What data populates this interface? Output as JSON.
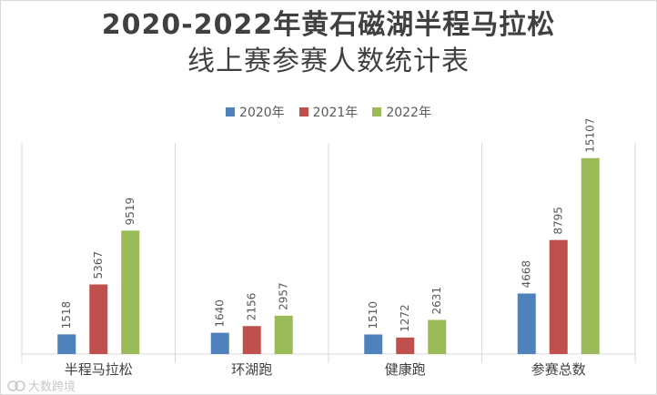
{
  "chart_data": {
    "type": "bar",
    "title_line1": "2020-2022年黄石磁湖半程马拉松",
    "title_line2": "线上赛参赛人数统计表",
    "categories": [
      "半程马拉松",
      "环湖跑",
      "健康跑",
      "参赛总数"
    ],
    "series": [
      {
        "name": "2020年",
        "color": "#4f81bd",
        "values": [
          1518,
          1640,
          1510,
          4668
        ]
      },
      {
        "name": "2021年",
        "color": "#c0504d",
        "values": [
          5367,
          2156,
          1272,
          8795
        ]
      },
      {
        "name": "2022年",
        "color": "#9bbb59",
        "values": [
          9519,
          2957,
          2631,
          15107
        ]
      }
    ],
    "ylim": [
      0,
      16000
    ],
    "legend_position": "top",
    "grid": false
  },
  "watermark": {
    "text": "大数跨境"
  }
}
